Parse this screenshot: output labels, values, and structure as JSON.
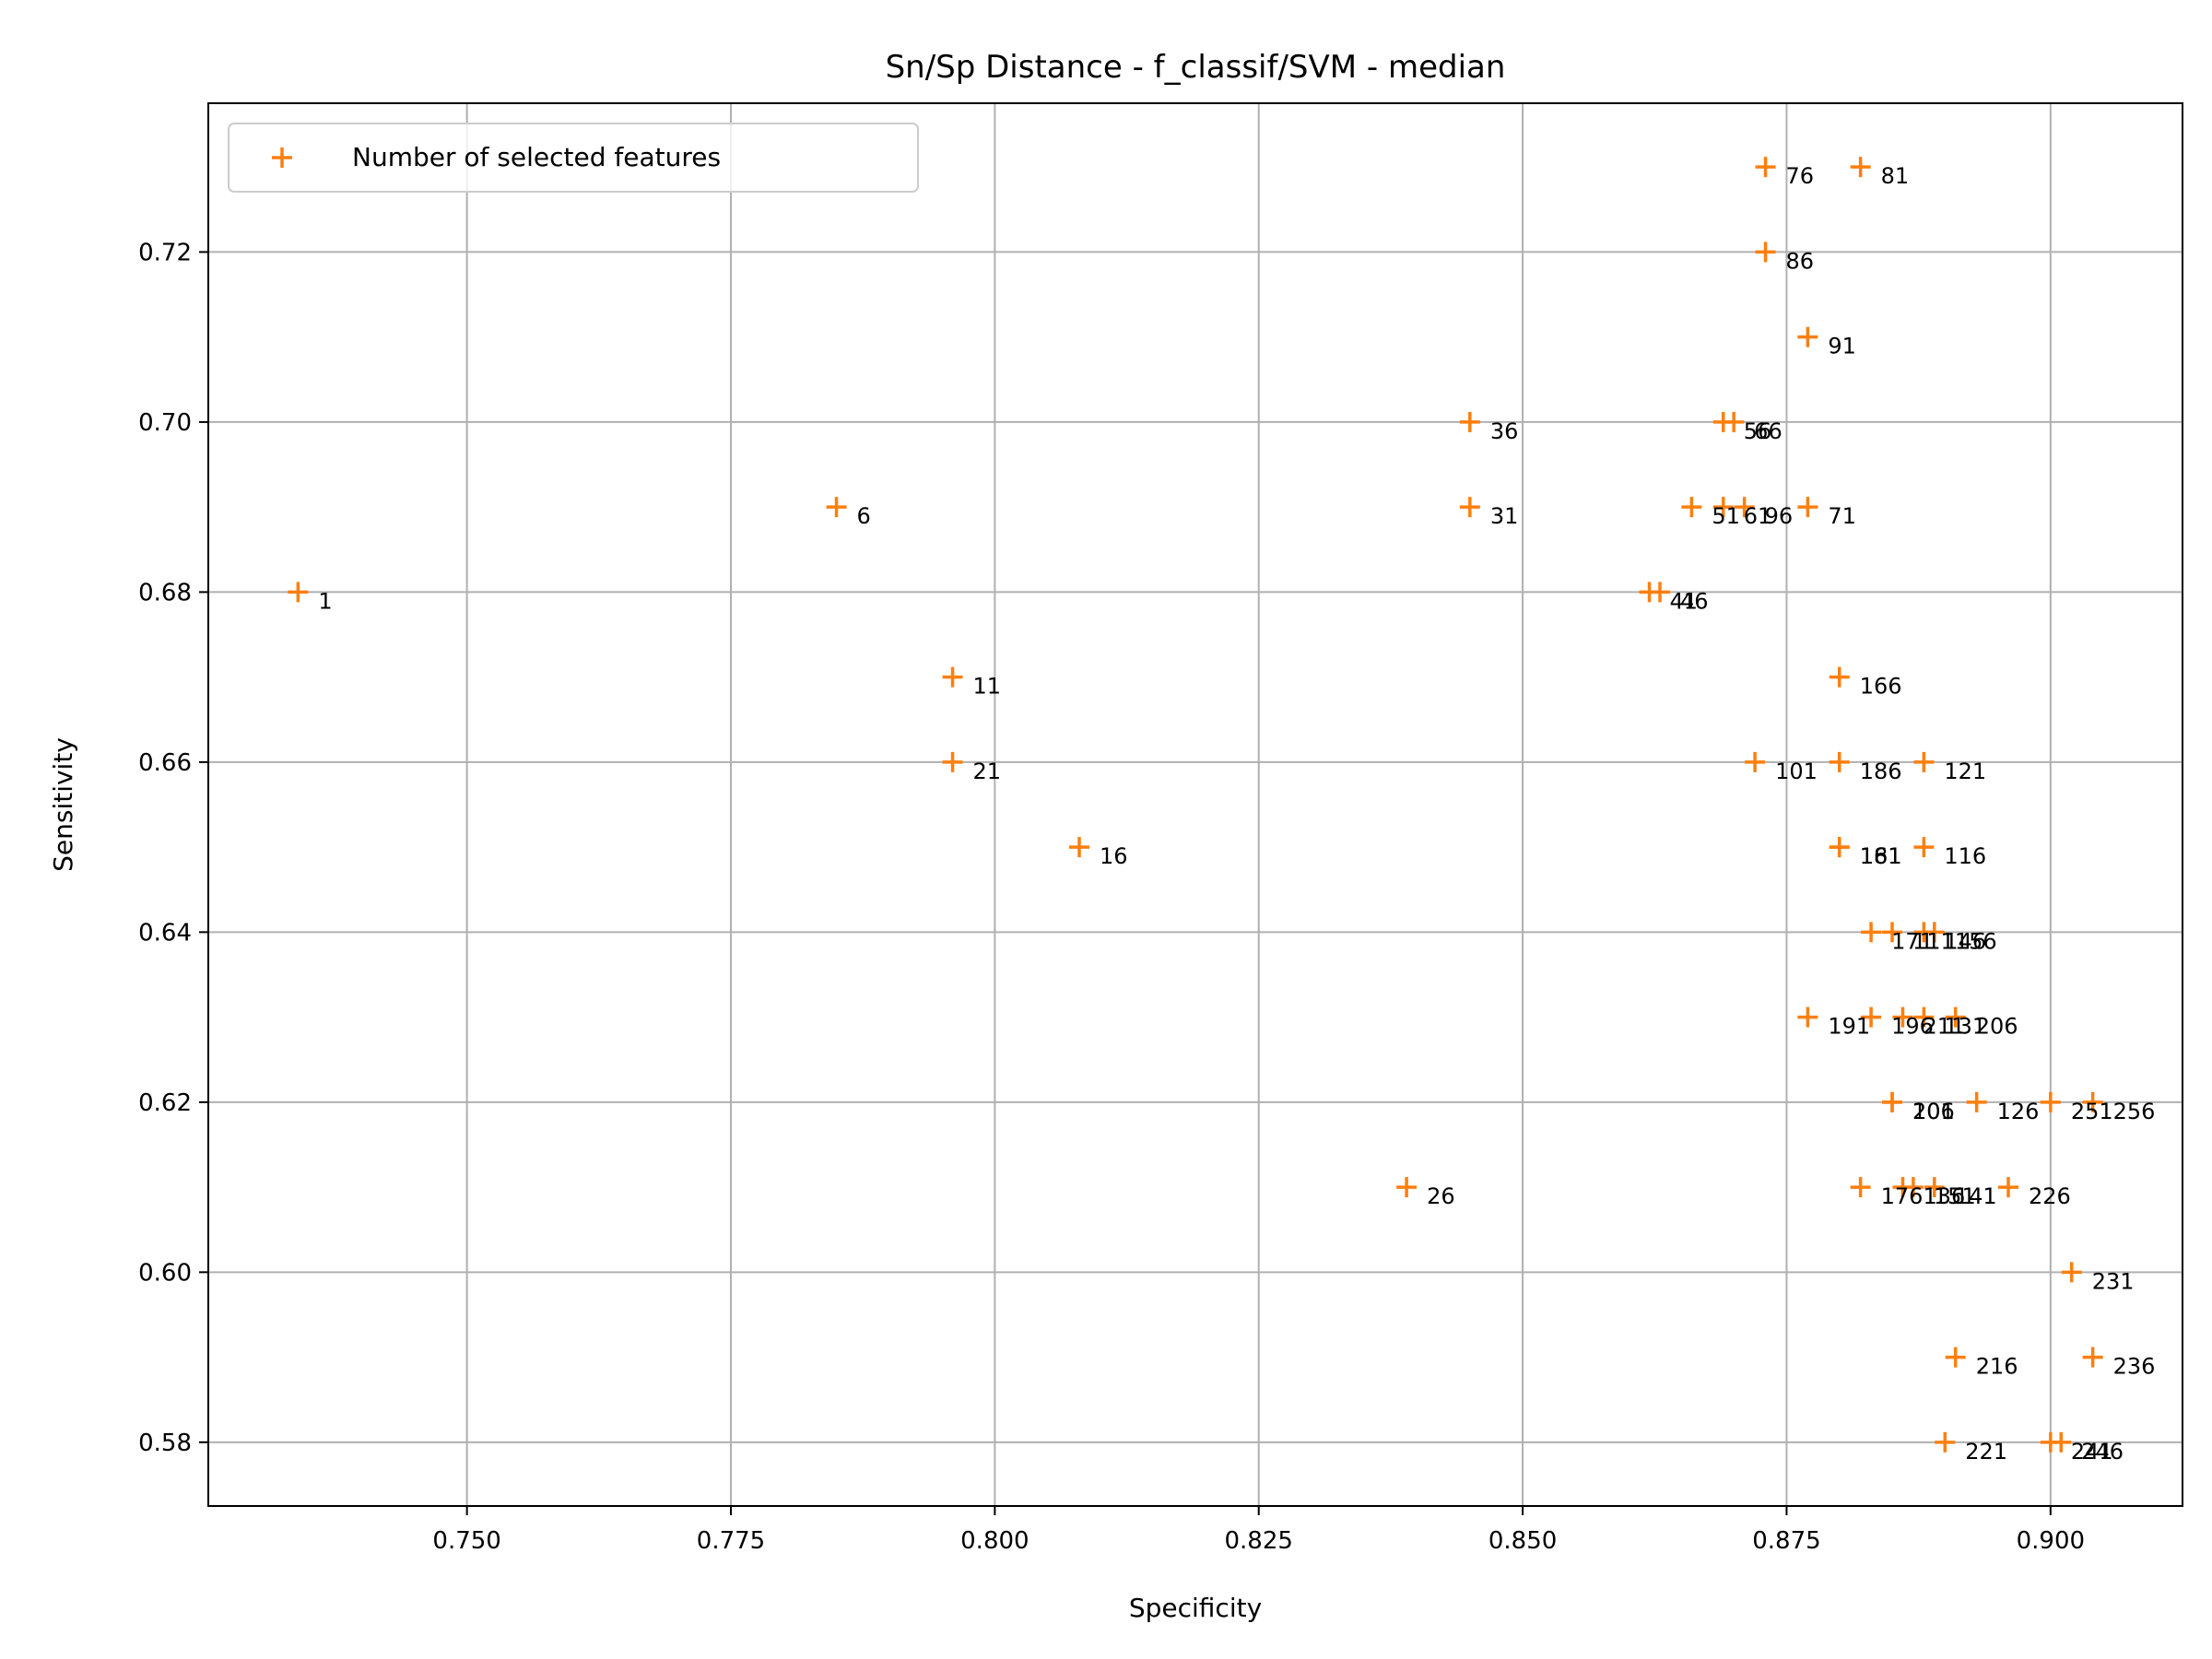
{
  "chart_data": {
    "type": "scatter",
    "title": "Sn/Sp Distance - f_classif/SVM - median",
    "xlabel": "Specificity",
    "ylabel": "Sensitivity",
    "xlim": [
      0.7255,
      0.9125
    ],
    "ylim": [
      0.5725,
      0.7375
    ],
    "xticks": [
      0.75,
      0.775,
      0.8,
      0.825,
      0.85,
      0.875,
      0.9
    ],
    "xtick_labels": [
      "0.750",
      "0.775",
      "0.800",
      "0.825",
      "0.850",
      "0.875",
      "0.900"
    ],
    "yticks": [
      0.58,
      0.6,
      0.62,
      0.64,
      0.66,
      0.68,
      0.7,
      0.72
    ],
    "ytick_labels": [
      "0.58",
      "0.60",
      "0.62",
      "0.64",
      "0.66",
      "0.68",
      "0.70",
      "0.72"
    ],
    "grid": true,
    "legend_position": "top-left",
    "marker_color": "#ff7f0e",
    "series": [
      {
        "name": "Number of selected features",
        "points": [
          {
            "label": "1",
            "x": 0.734,
            "y": 0.68
          },
          {
            "label": "6",
            "x": 0.785,
            "y": 0.69
          },
          {
            "label": "11",
            "x": 0.796,
            "y": 0.67
          },
          {
            "label": "16",
            "x": 0.808,
            "y": 0.65
          },
          {
            "label": "21",
            "x": 0.796,
            "y": 0.66
          },
          {
            "label": "26",
            "x": 0.839,
            "y": 0.61
          },
          {
            "label": "31",
            "x": 0.845,
            "y": 0.69
          },
          {
            "label": "36",
            "x": 0.845,
            "y": 0.7
          },
          {
            "label": "41",
            "x": 0.862,
            "y": 0.68
          },
          {
            "label": "46",
            "x": 0.863,
            "y": 0.68
          },
          {
            "label": "51",
            "x": 0.866,
            "y": 0.69
          },
          {
            "label": "56",
            "x": 0.869,
            "y": 0.7
          },
          {
            "label": "61",
            "x": 0.869,
            "y": 0.69
          },
          {
            "label": "66",
            "x": 0.87,
            "y": 0.7
          },
          {
            "label": "71",
            "x": 0.877,
            "y": 0.69
          },
          {
            "label": "76",
            "x": 0.873,
            "y": 0.73
          },
          {
            "label": "81",
            "x": 0.882,
            "y": 0.73
          },
          {
            "label": "86",
            "x": 0.873,
            "y": 0.72
          },
          {
            "label": "91",
            "x": 0.877,
            "y": 0.71
          },
          {
            "label": "96",
            "x": 0.871,
            "y": 0.69
          },
          {
            "label": "101",
            "x": 0.872,
            "y": 0.66
          },
          {
            "label": "106",
            "x": 0.885,
            "y": 0.62
          },
          {
            "label": "111",
            "x": 0.885,
            "y": 0.64
          },
          {
            "label": "116",
            "x": 0.888,
            "y": 0.65
          },
          {
            "label": "121",
            "x": 0.888,
            "y": 0.66
          },
          {
            "label": "126",
            "x": 0.893,
            "y": 0.62
          },
          {
            "label": "131",
            "x": 0.888,
            "y": 0.63
          },
          {
            "label": "136",
            "x": 0.886,
            "y": 0.61
          },
          {
            "label": "141",
            "x": 0.889,
            "y": 0.61
          },
          {
            "label": "146",
            "x": 0.888,
            "y": 0.64
          },
          {
            "label": "151",
            "x": 0.887,
            "y": 0.61
          },
          {
            "label": "156",
            "x": 0.889,
            "y": 0.64
          },
          {
            "label": "161",
            "x": 0.88,
            "y": 0.65
          },
          {
            "label": "166",
            "x": 0.88,
            "y": 0.67
          },
          {
            "label": "171",
            "x": 0.883,
            "y": 0.64
          },
          {
            "label": "176",
            "x": 0.882,
            "y": 0.61
          },
          {
            "label": "181",
            "x": 0.88,
            "y": 0.65
          },
          {
            "label": "186",
            "x": 0.88,
            "y": 0.66
          },
          {
            "label": "191",
            "x": 0.877,
            "y": 0.63
          },
          {
            "label": "196",
            "x": 0.883,
            "y": 0.63
          },
          {
            "label": "201",
            "x": 0.885,
            "y": 0.62
          },
          {
            "label": "206",
            "x": 0.891,
            "y": 0.63
          },
          {
            "label": "211",
            "x": 0.886,
            "y": 0.63
          },
          {
            "label": "216",
            "x": 0.891,
            "y": 0.59
          },
          {
            "label": "221",
            "x": 0.89,
            "y": 0.58
          },
          {
            "label": "226",
            "x": 0.896,
            "y": 0.61
          },
          {
            "label": "231",
            "x": 0.902,
            "y": 0.6
          },
          {
            "label": "236",
            "x": 0.904,
            "y": 0.59
          },
          {
            "label": "241",
            "x": 0.9,
            "y": 0.58
          },
          {
            "label": "246",
            "x": 0.901,
            "y": 0.58
          },
          {
            "label": "251",
            "x": 0.9,
            "y": 0.62
          },
          {
            "label": "256",
            "x": 0.904,
            "y": 0.62
          }
        ]
      }
    ]
  }
}
